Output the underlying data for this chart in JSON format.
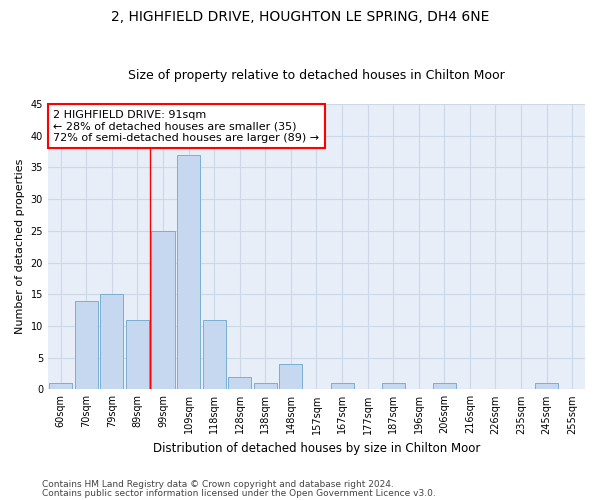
{
  "title1": "2, HIGHFIELD DRIVE, HOUGHTON LE SPRING, DH4 6NE",
  "title2": "Size of property relative to detached houses in Chilton Moor",
  "xlabel": "Distribution of detached houses by size in Chilton Moor",
  "ylabel": "Number of detached properties",
  "categories": [
    "60sqm",
    "70sqm",
    "79sqm",
    "89sqm",
    "99sqm",
    "109sqm",
    "118sqm",
    "128sqm",
    "138sqm",
    "148sqm",
    "157sqm",
    "167sqm",
    "177sqm",
    "187sqm",
    "196sqm",
    "206sqm",
    "216sqm",
    "226sqm",
    "235sqm",
    "245sqm",
    "255sqm"
  ],
  "values": [
    1,
    14,
    15,
    11,
    25,
    37,
    11,
    2,
    1,
    4,
    0,
    1,
    0,
    1,
    0,
    1,
    0,
    0,
    0,
    1,
    0
  ],
  "bar_color": "#c5d8f0",
  "bar_edge_color": "#7aaed4",
  "annotation_text": "2 HIGHFIELD DRIVE: 91sqm\n← 28% of detached houses are smaller (35)\n72% of semi-detached houses are larger (89) →",
  "annotation_box_color": "white",
  "annotation_box_edge_color": "red",
  "vline_color": "red",
  "vline_x_index": 3.5,
  "ylim": [
    0,
    45
  ],
  "yticks": [
    0,
    5,
    10,
    15,
    20,
    25,
    30,
    35,
    40,
    45
  ],
  "grid_color": "#ccd8e8",
  "bg_color": "#e8eef8",
  "footnote1": "Contains HM Land Registry data © Crown copyright and database right 2024.",
  "footnote2": "Contains public sector information licensed under the Open Government Licence v3.0.",
  "title1_fontsize": 10,
  "title2_fontsize": 9,
  "xlabel_fontsize": 8.5,
  "ylabel_fontsize": 8,
  "tick_fontsize": 7,
  "annotation_fontsize": 8,
  "footnote_fontsize": 6.5
}
